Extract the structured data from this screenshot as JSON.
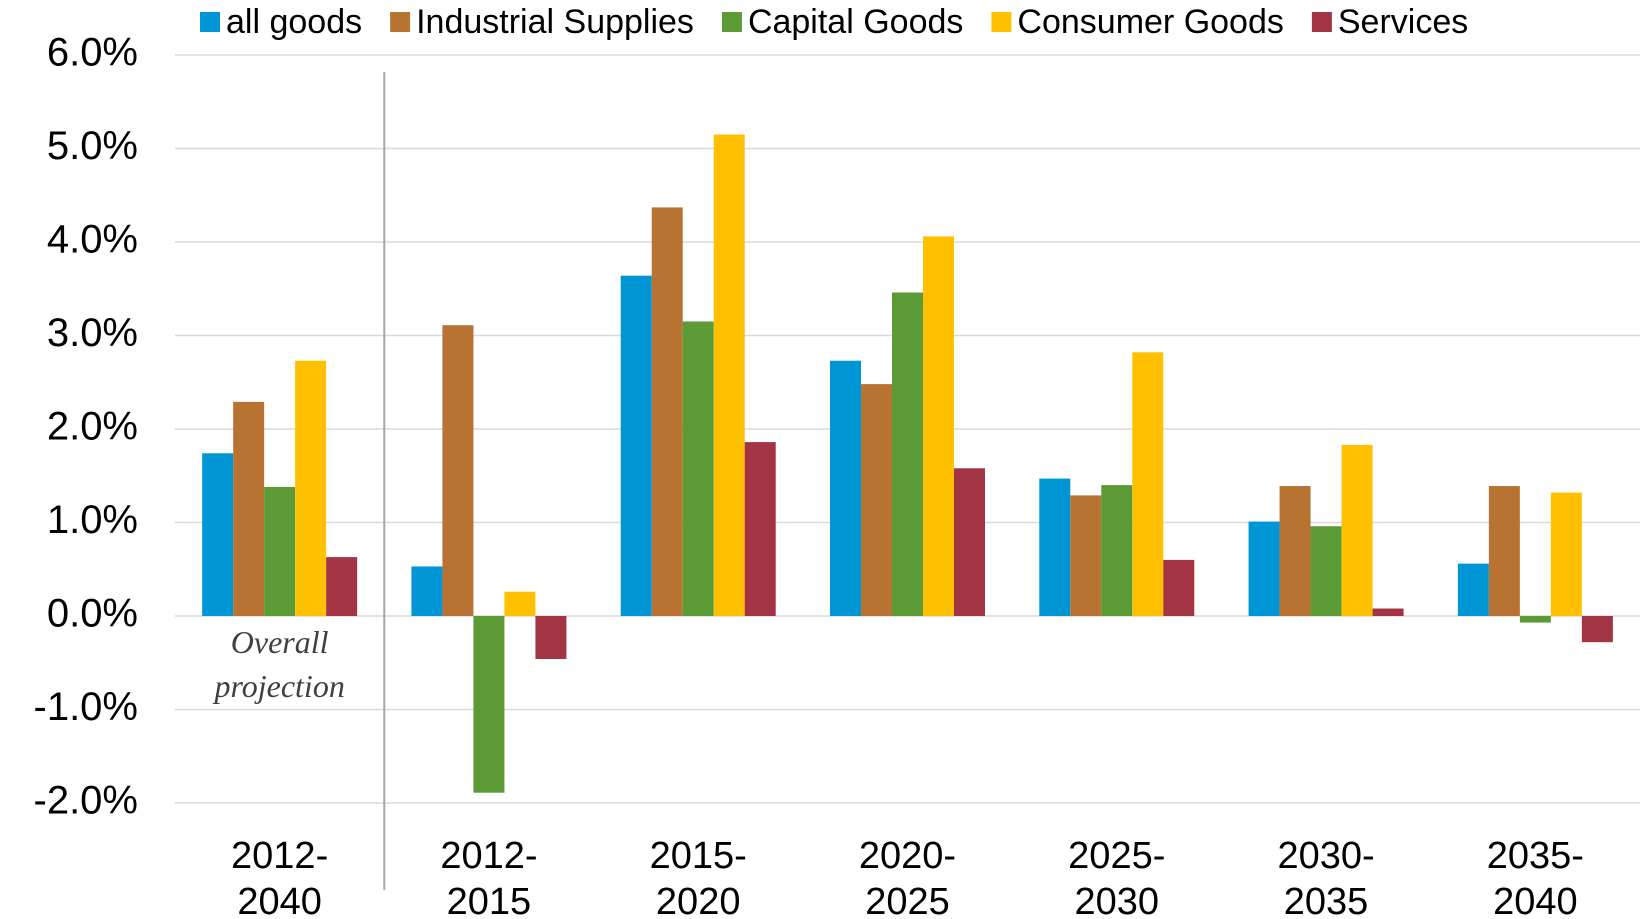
{
  "chart_data": {
    "type": "bar",
    "categories": [
      "2012-2040",
      "2012-2015",
      "2015-2020",
      "2020-2025",
      "2025-2030",
      "2030-2035",
      "2035-2040"
    ],
    "series": [
      {
        "name": "all goods",
        "color": "#0096d6",
        "values": [
          1.74,
          0.53,
          3.64,
          2.73,
          1.47,
          1.01,
          0.56
        ]
      },
      {
        "name": "Industrial Supplies",
        "color": "#b87333",
        "values": [
          2.29,
          3.11,
          4.37,
          2.48,
          1.29,
          1.39,
          1.39
        ]
      },
      {
        "name": "Capital Goods",
        "color": "#5b9a34",
        "values": [
          1.38,
          -1.89,
          3.15,
          3.46,
          1.4,
          0.96,
          -0.07
        ]
      },
      {
        "name": "Consumer Goods",
        "color": "#ffc000",
        "values": [
          2.73,
          0.26,
          5.15,
          4.06,
          2.82,
          1.83,
          1.32
        ]
      },
      {
        "name": "Services",
        "color": "#a33443",
        "values": [
          0.63,
          -0.46,
          1.86,
          1.58,
          0.6,
          0.08,
          -0.28
        ]
      }
    ],
    "ylim": [
      -2,
      6
    ],
    "yticks": [
      {
        "value": -2,
        "label": "-2.0%"
      },
      {
        "value": -1,
        "label": "-1.0%"
      },
      {
        "value": 0,
        "label": "0.0%"
      },
      {
        "value": 1,
        "label": "1.0%"
      },
      {
        "value": 2,
        "label": "2.0%"
      },
      {
        "value": 3,
        "label": "3.0%"
      },
      {
        "value": 4,
        "label": "4.0%"
      },
      {
        "value": 5,
        "label": "5.0%"
      },
      {
        "value": 6,
        "label": "6.0%"
      }
    ],
    "grid": true,
    "legend": "top",
    "annotation": "Overall projection"
  }
}
